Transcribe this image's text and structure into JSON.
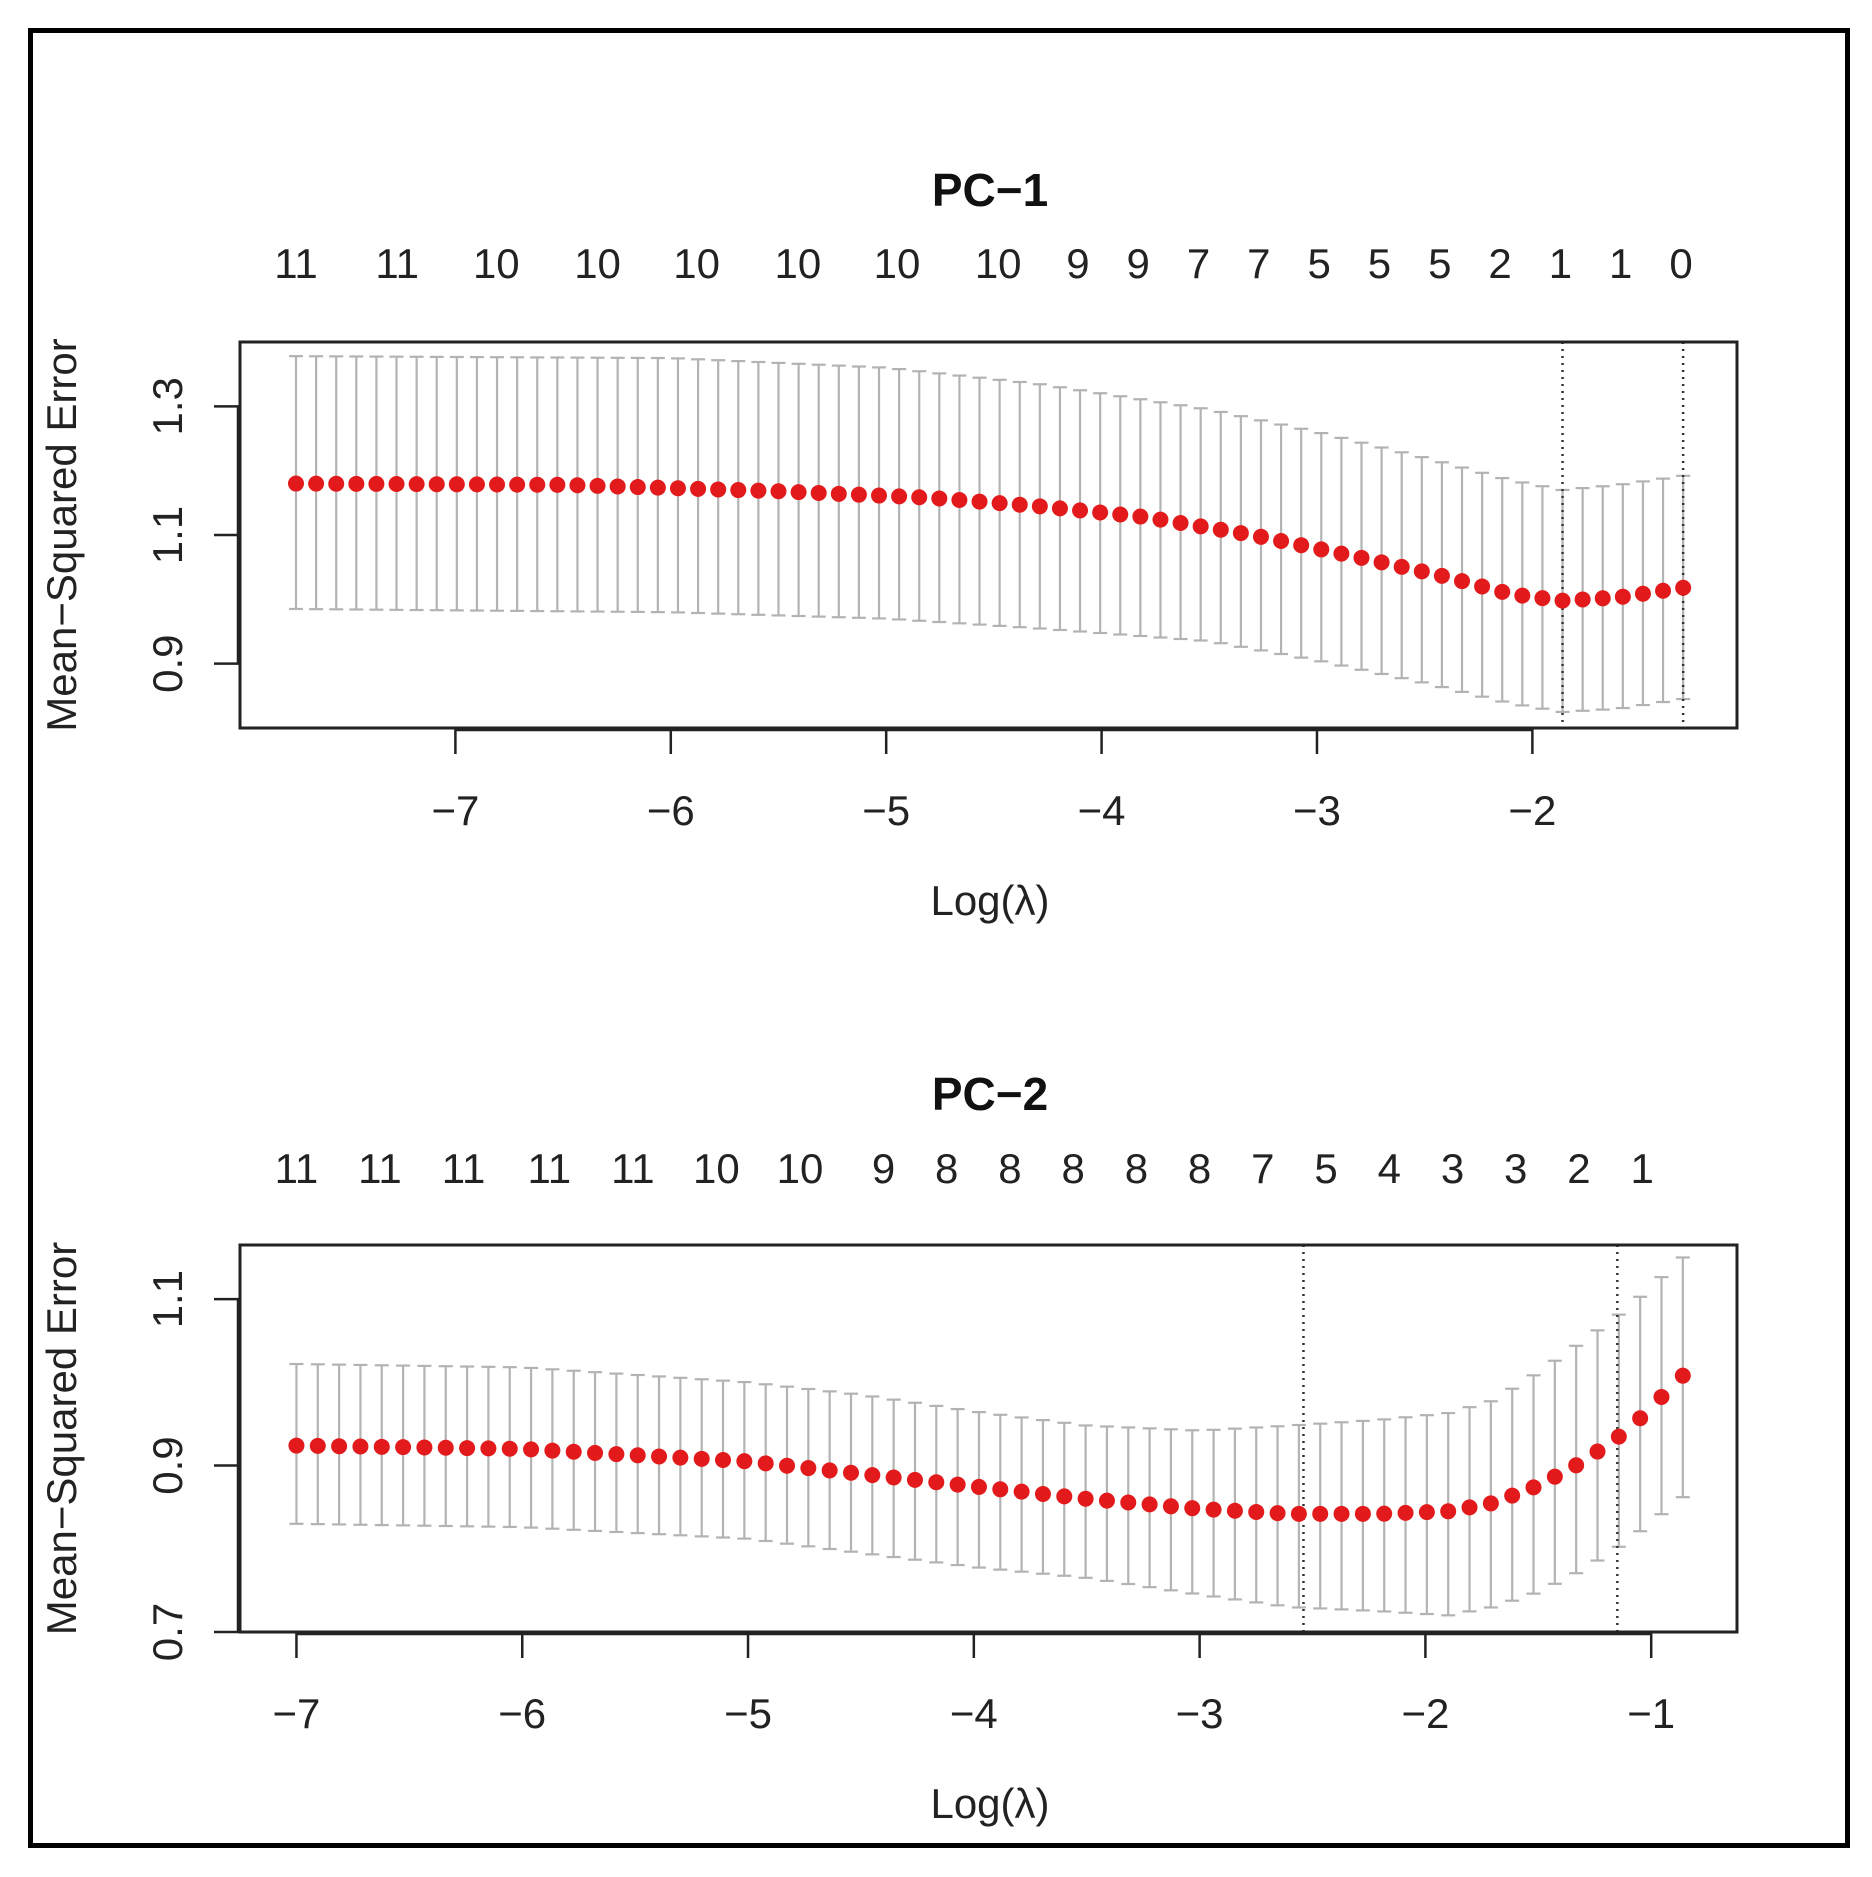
{
  "colors": {
    "point": "#e31a1c",
    "errorbar": "#b3b3b3",
    "axis": "#222222",
    "frame": "#000000"
  },
  "chart_data": [
    {
      "type": "scatter",
      "title": "PC−1",
      "xlabel": "Log(λ)",
      "ylabel": "Mean−Squared Error",
      "xlim": [
        -8,
        -1.05
      ],
      "ylim": [
        0.8,
        1.4
      ],
      "xticks": [
        -7,
        -6,
        -5,
        -4,
        -3,
        -2
      ],
      "xtick_labels": [
        "−7",
        "−6",
        "−5",
        "−4",
        "−3",
        "−2"
      ],
      "yticks": [
        0.9,
        1.1,
        1.3
      ],
      "ytick_labels": [
        "0.9",
        "1.1",
        "1.3"
      ],
      "grid": false,
      "top_axis_nonzero_counts": {
        "x": [
          -7.74,
          -7.27,
          -6.81,
          -6.34,
          -5.88,
          -5.41,
          -4.95,
          -4.48,
          -4.11,
          -3.83,
          -3.55,
          -3.27,
          -2.99,
          -2.71,
          -2.43,
          -2.15,
          -1.87,
          -1.59,
          -1.31
        ],
        "labels": [
          "11",
          "11",
          "10",
          "10",
          "10",
          "10",
          "10",
          "10",
          "9",
          "9",
          "7",
          "7",
          "5",
          "5",
          "5",
          "2",
          "1",
          "1",
          "0"
        ]
      },
      "vlines": [
        -1.86,
        -1.3
      ],
      "x_range": [
        -7.74,
        -1.3
      ],
      "n_points": 70,
      "mean_control": [
        [
          -7.74,
          1.18
        ],
        [
          -6.5,
          1.178
        ],
        [
          -5.5,
          1.168
        ],
        [
          -4.8,
          1.158
        ],
        [
          -4.3,
          1.145
        ],
        [
          -3.8,
          1.128
        ],
        [
          -3.3,
          1.1
        ],
        [
          -2.8,
          1.065
        ],
        [
          -2.4,
          1.035
        ],
        [
          -2.1,
          1.008
        ],
        [
          -1.86,
          0.998
        ],
        [
          -1.6,
          1.003
        ],
        [
          -1.3,
          1.018
        ]
      ],
      "upper_control": [
        [
          -7.74,
          1.378
        ],
        [
          -6.0,
          1.375
        ],
        [
          -5.0,
          1.36
        ],
        [
          -4.3,
          1.335
        ],
        [
          -3.5,
          1.295
        ],
        [
          -3.0,
          1.26
        ],
        [
          -2.5,
          1.22
        ],
        [
          -2.1,
          1.185
        ],
        [
          -1.86,
          1.17
        ],
        [
          -1.6,
          1.178
        ],
        [
          -1.3,
          1.192
        ]
      ],
      "lower_control": [
        [
          -7.74,
          0.985
        ],
        [
          -6.0,
          0.98
        ],
        [
          -5.0,
          0.97
        ],
        [
          -4.3,
          0.955
        ],
        [
          -3.5,
          0.935
        ],
        [
          -3.0,
          0.905
        ],
        [
          -2.5,
          0.87
        ],
        [
          -2.1,
          0.838
        ],
        [
          -1.86,
          0.825
        ],
        [
          -1.6,
          0.83
        ],
        [
          -1.3,
          0.845
        ]
      ]
    },
    {
      "type": "scatter",
      "title": "PC−2",
      "xlabel": "Log(λ)",
      "ylabel": "Mean−Squared Error",
      "xlim": [
        -7.25,
        -0.62
      ],
      "ylim": [
        0.7,
        1.165
      ],
      "xticks": [
        -7,
        -6,
        -5,
        -4,
        -3,
        -2,
        -1
      ],
      "xtick_labels": [
        "−7",
        "−6",
        "−5",
        "−4",
        "−3",
        "−2",
        "−1"
      ],
      "yticks": [
        0.7,
        0.9,
        1.1
      ],
      "ytick_labels": [
        "0.7",
        "0.9",
        "1.1"
      ],
      "grid": false,
      "top_axis_nonzero_counts": {
        "x": [
          -7.0,
          -6.63,
          -6.26,
          -5.88,
          -5.51,
          -5.14,
          -4.77,
          -4.4,
          -4.12,
          -3.84,
          -3.56,
          -3.28,
          -3.0,
          -2.72,
          -2.44,
          -2.16,
          -1.88,
          -1.6,
          -1.32,
          -1.04
        ],
        "labels": [
          "11",
          "11",
          "11",
          "11",
          "11",
          "10",
          "10",
          "9",
          "8",
          "8",
          "8",
          "8",
          "8",
          "7",
          "5",
          "4",
          "3",
          "3",
          "2",
          "1"
        ]
      },
      "vlines": [
        -2.54,
        -1.15
      ],
      "x_range": [
        -7.0,
        -0.86
      ],
      "n_points": 66,
      "mean_control": [
        [
          -7.0,
          0.924
        ],
        [
          -6.0,
          0.92
        ],
        [
          -5.0,
          0.905
        ],
        [
          -4.5,
          0.89
        ],
        [
          -4.0,
          0.875
        ],
        [
          -3.5,
          0.86
        ],
        [
          -3.0,
          0.848
        ],
        [
          -2.6,
          0.842
        ],
        [
          -2.2,
          0.842
        ],
        [
          -1.9,
          0.845
        ],
        [
          -1.7,
          0.855
        ],
        [
          -1.5,
          0.876
        ],
        [
          -1.3,
          0.905
        ],
        [
          -1.1,
          0.943
        ],
        [
          -0.86,
          1.008
        ]
      ],
      "upper_control": [
        [
          -7.0,
          1.022
        ],
        [
          -6.0,
          1.018
        ],
        [
          -5.0,
          1.0
        ],
        [
          -4.5,
          0.985
        ],
        [
          -4.0,
          0.965
        ],
        [
          -3.5,
          0.948
        ],
        [
          -3.0,
          0.942
        ],
        [
          -2.6,
          0.948
        ],
        [
          -2.2,
          0.955
        ],
        [
          -1.9,
          0.963
        ],
        [
          -1.7,
          0.978
        ],
        [
          -1.5,
          1.012
        ],
        [
          -1.3,
          1.05
        ],
        [
          -1.1,
          1.09
        ],
        [
          -0.86,
          1.15
        ]
      ],
      "lower_control": [
        [
          -7.0,
          0.83
        ],
        [
          -6.0,
          0.826
        ],
        [
          -5.0,
          0.812
        ],
        [
          -4.5,
          0.795
        ],
        [
          -4.0,
          0.778
        ],
        [
          -3.5,
          0.765
        ],
        [
          -3.0,
          0.745
        ],
        [
          -2.6,
          0.73
        ],
        [
          -2.2,
          0.725
        ],
        [
          -1.9,
          0.72
        ],
        [
          -1.7,
          0.73
        ],
        [
          -1.5,
          0.748
        ],
        [
          -1.3,
          0.775
        ],
        [
          -1.1,
          0.81
        ],
        [
          -0.86,
          0.862
        ]
      ]
    }
  ]
}
